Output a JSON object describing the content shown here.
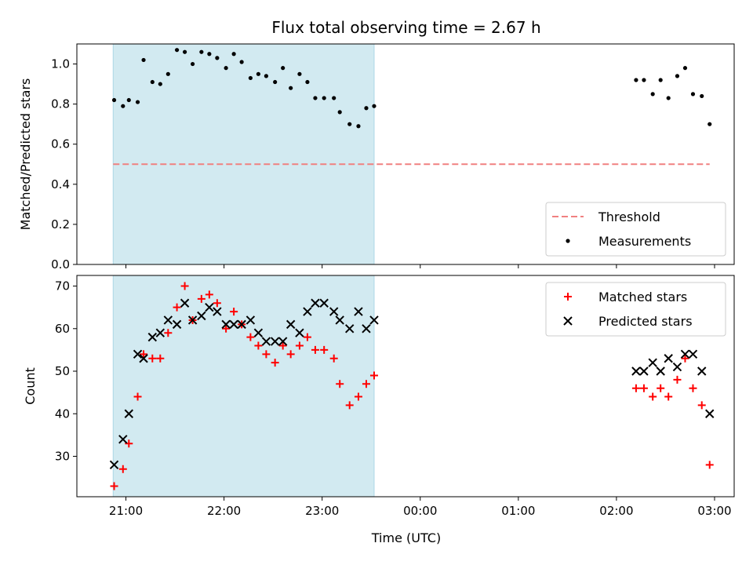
{
  "chart_data": {
    "title": "Flux total observing time = 2.67 h",
    "xlabel": "Time (UTC)",
    "x_ticks": [
      "21:00",
      "22:00",
      "23:00",
      "00:00",
      "01:00",
      "02:00",
      "03:00"
    ],
    "xlim_hours": [
      20.5,
      3.2
    ],
    "shaded_span_hours": [
      20.87,
      23.53
    ],
    "shade_color": "#add8e6",
    "panels": [
      {
        "type": "scatter",
        "ylabel": "Matched/Predicted stars",
        "ylim": [
          0.0,
          1.1
        ],
        "y_ticks": [
          "0.0",
          "0.2",
          "0.4",
          "0.6",
          "0.8",
          "1.0"
        ],
        "legend_position": "lower-right",
        "threshold": {
          "name": "Threshold",
          "value": 0.5,
          "x_range_hours": [
            20.87,
            2.95
          ],
          "color": "#f08080"
        },
        "series": [
          {
            "name": "Measurements",
            "color": "#000000",
            "marker": "dot",
            "x": [
              20.88,
              20.97,
              21.03,
              21.12,
              21.18,
              21.27,
              21.35,
              21.43,
              21.52,
              21.6,
              21.68,
              21.77,
              21.85,
              21.93,
              22.02,
              22.1,
              22.18,
              22.27,
              22.35,
              22.43,
              22.52,
              22.6,
              22.68,
              22.77,
              22.85,
              22.93,
              23.02,
              23.12,
              23.18,
              23.28,
              23.37,
              23.45,
              23.53,
              2.2,
              2.28,
              2.37,
              2.45,
              2.53,
              2.62,
              2.7,
              2.78,
              2.87,
              2.95
            ],
            "y": [
              0.82,
              0.79,
              0.82,
              0.81,
              1.02,
              0.91,
              0.9,
              0.95,
              1.07,
              1.06,
              1.0,
              1.06,
              1.05,
              1.03,
              0.98,
              1.05,
              1.01,
              0.93,
              0.95,
              0.94,
              0.91,
              0.98,
              0.88,
              0.95,
              0.91,
              0.83,
              0.83,
              0.83,
              0.76,
              0.7,
              0.69,
              0.78,
              0.79,
              0.92,
              0.92,
              0.85,
              0.92,
              0.83,
              0.94,
              0.98,
              0.85,
              0.84,
              0.7
            ]
          }
        ]
      },
      {
        "type": "scatter",
        "ylabel": "Count",
        "ylim": [
          20.5,
          72.5
        ],
        "y_ticks": [
          "30",
          "40",
          "50",
          "60",
          "70"
        ],
        "legend_position": "upper-right",
        "series": [
          {
            "name": "Matched stars",
            "color": "#ff0000",
            "marker": "plus",
            "x": [
              20.88,
              20.97,
              21.03,
              21.12,
              21.18,
              21.27,
              21.35,
              21.43,
              21.52,
              21.6,
              21.68,
              21.77,
              21.85,
              21.93,
              22.02,
              22.1,
              22.18,
              22.27,
              22.35,
              22.43,
              22.52,
              22.6,
              22.68,
              22.77,
              22.85,
              22.93,
              23.02,
              23.12,
              23.18,
              23.28,
              23.37,
              23.45,
              23.53,
              2.2,
              2.28,
              2.37,
              2.45,
              2.53,
              2.62,
              2.7,
              2.78,
              2.87,
              2.95
            ],
            "y": [
              23,
              27,
              33,
              44,
              54,
              53,
              53,
              59,
              65,
              70,
              62,
              67,
              68,
              66,
              60,
              64,
              61,
              58,
              56,
              54,
              52,
              56,
              54,
              56,
              58,
              55,
              55,
              53,
              47,
              42,
              44,
              47,
              49,
              46,
              46,
              44,
              46,
              44,
              48,
              53,
              46,
              42,
              28
            ]
          },
          {
            "name": "Predicted stars",
            "color": "#000000",
            "marker": "x",
            "x": [
              20.88,
              20.97,
              21.03,
              21.12,
              21.18,
              21.27,
              21.35,
              21.43,
              21.52,
              21.6,
              21.68,
              21.77,
              21.85,
              21.93,
              22.02,
              22.1,
              22.18,
              22.27,
              22.35,
              22.43,
              22.52,
              22.6,
              22.68,
              22.77,
              22.85,
              22.93,
              23.02,
              23.12,
              23.18,
              23.28,
              23.37,
              23.45,
              23.53,
              2.2,
              2.28,
              2.37,
              2.45,
              2.53,
              2.62,
              2.7,
              2.78,
              2.87,
              2.95
            ],
            "y": [
              28,
              34,
              40,
              54,
              53,
              58,
              59,
              62,
              61,
              66,
              62,
              63,
              65,
              64,
              61,
              61,
              61,
              62,
              59,
              57,
              57,
              57,
              61,
              59,
              64,
              66,
              66,
              64,
              62,
              60,
              64,
              60,
              62,
              50,
              50,
              52,
              50,
              53,
              51,
              54,
              54,
              50,
              40
            ]
          }
        ]
      }
    ]
  }
}
